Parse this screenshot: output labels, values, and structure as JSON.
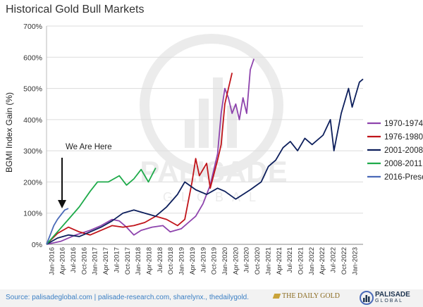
{
  "title": "Historical Gold Bull Markets",
  "watermark": {
    "name": "PALISADE",
    "sub": "GLOBAL"
  },
  "footer": {
    "source": "Source: palisadeglobal.com  | palisade-research.com, sharelynx.,  thedailygold.",
    "thedailygold_logo": "THE DAILY GOLD",
    "palisade_logo_name": "PALISADE",
    "palisade_logo_sub": "GLOBAL"
  },
  "annotation": {
    "text": "We Are Here",
    "points_to": "2016-Present latest value"
  },
  "colors": {
    "1970-1974": "#8e44ad",
    "1976-1980": "#c0141a",
    "2001-2008": "#0d1f5c",
    "2008-2011": "#1eaa4a",
    "2016-Present": "#4a6ab8"
  },
  "chart_data": {
    "type": "line",
    "title": "Historical Gold Bull Markets",
    "xlabel": "",
    "ylabel": "BGMI Index Gain (%)",
    "ylim": [
      0,
      700
    ],
    "yticks": [
      0,
      100,
      200,
      300,
      400,
      500,
      600,
      700
    ],
    "ytick_labels": [
      "0%",
      "100%",
      "200%",
      "300%",
      "400%",
      "500%",
      "600%",
      "700%"
    ],
    "x_range": [
      "2016-01",
      "2023-04"
    ],
    "xtick_labels": [
      "Jan-2016",
      "Apr-2016",
      "Jul-2016",
      "Oct-2016",
      "Jan-2017",
      "Apr-2017",
      "Jul-2017",
      "Oct-2017",
      "Jan-2018",
      "Apr-2018",
      "Jul-2018",
      "Oct-2018",
      "Jan-2019",
      "Apr-2019",
      "Jul-2019",
      "Oct-2019",
      "Jan-2020",
      "Apr-2020",
      "Jul-2020",
      "Oct-2020",
      "Jan-2021",
      "Apr-2021",
      "Jul-2021",
      "Oct-2021",
      "Jan-2022",
      "Apr-2022",
      "Jul-2022",
      "Oct-2022",
      "Jan-2023"
    ],
    "grid": true,
    "legend": "right",
    "series": [
      {
        "name": "1970-1974",
        "points": [
          [
            "2016-01",
            0
          ],
          [
            "2016-05",
            10
          ],
          [
            "2016-09",
            30
          ],
          [
            "2017-01",
            45
          ],
          [
            "2017-04",
            60
          ],
          [
            "2017-07",
            80
          ],
          [
            "2017-09",
            75
          ],
          [
            "2017-11",
            55
          ],
          [
            "2018-01",
            30
          ],
          [
            "2018-03",
            45
          ],
          [
            "2018-06",
            55
          ],
          [
            "2018-09",
            60
          ],
          [
            "2018-11",
            40
          ],
          [
            "2019-02",
            50
          ],
          [
            "2019-04",
            70
          ],
          [
            "2019-06",
            90
          ],
          [
            "2019-08",
            130
          ],
          [
            "2019-10",
            190
          ],
          [
            "2019-12",
            290
          ],
          [
            "2020-01",
            420
          ],
          [
            "2020-02",
            500
          ],
          [
            "2020-03",
            470
          ],
          [
            "2020-04",
            420
          ],
          [
            "2020-05",
            450
          ],
          [
            "2020-06",
            400
          ],
          [
            "2020-07",
            470
          ],
          [
            "2020-08",
            420
          ],
          [
            "2020-09",
            560
          ],
          [
            "2020-10",
            595
          ]
        ]
      },
      {
        "name": "1976-1980",
        "points": [
          [
            "2016-01",
            0
          ],
          [
            "2016-04",
            35
          ],
          [
            "2016-07",
            55
          ],
          [
            "2016-10",
            40
          ],
          [
            "2017-01",
            30
          ],
          [
            "2017-04",
            45
          ],
          [
            "2017-07",
            60
          ],
          [
            "2017-10",
            55
          ],
          [
            "2018-01",
            60
          ],
          [
            "2018-04",
            70
          ],
          [
            "2018-07",
            90
          ],
          [
            "2018-10",
            80
          ],
          [
            "2019-01",
            60
          ],
          [
            "2019-03",
            80
          ],
          [
            "2019-05",
            200
          ],
          [
            "2019-06",
            275
          ],
          [
            "2019-07",
            220
          ],
          [
            "2019-09",
            260
          ],
          [
            "2019-10",
            180
          ],
          [
            "2019-12",
            270
          ],
          [
            "2020-01",
            320
          ],
          [
            "2020-02",
            450
          ],
          [
            "2020-03",
            500
          ],
          [
            "2020-04",
            550
          ]
        ]
      },
      {
        "name": "2001-2008",
        "points": [
          [
            "2016-01",
            0
          ],
          [
            "2016-04",
            20
          ],
          [
            "2016-07",
            30
          ],
          [
            "2016-10",
            25
          ],
          [
            "2017-01",
            40
          ],
          [
            "2017-04",
            55
          ],
          [
            "2017-07",
            75
          ],
          [
            "2017-10",
            100
          ],
          [
            "2018-01",
            110
          ],
          [
            "2018-04",
            100
          ],
          [
            "2018-07",
            90
          ],
          [
            "2018-10",
            120
          ],
          [
            "2019-01",
            160
          ],
          [
            "2019-03",
            200
          ],
          [
            "2019-06",
            175
          ],
          [
            "2019-09",
            160
          ],
          [
            "2019-12",
            180
          ],
          [
            "2020-02",
            170
          ],
          [
            "2020-05",
            145
          ],
          [
            "2020-07",
            160
          ],
          [
            "2020-09",
            175
          ],
          [
            "2020-12",
            200
          ],
          [
            "2021-02",
            250
          ],
          [
            "2021-04",
            270
          ],
          [
            "2021-06",
            310
          ],
          [
            "2021-08",
            330
          ],
          [
            "2021-10",
            300
          ],
          [
            "2021-12",
            340
          ],
          [
            "2022-02",
            320
          ],
          [
            "2022-05",
            350
          ],
          [
            "2022-07",
            400
          ],
          [
            "2022-08",
            300
          ],
          [
            "2022-10",
            420
          ],
          [
            "2022-12",
            500
          ],
          [
            "2023-01",
            440
          ],
          [
            "2023-03",
            520
          ],
          [
            "2023-04",
            530
          ]
        ]
      },
      {
        "name": "2008-2011",
        "points": [
          [
            "2016-01",
            0
          ],
          [
            "2016-04",
            40
          ],
          [
            "2016-07",
            80
          ],
          [
            "2016-10",
            120
          ],
          [
            "2017-01",
            170
          ],
          [
            "2017-03",
            200
          ],
          [
            "2017-06",
            200
          ],
          [
            "2017-09",
            220
          ],
          [
            "2017-11",
            190
          ],
          [
            "2018-01",
            210
          ],
          [
            "2018-03",
            240
          ],
          [
            "2018-05",
            200
          ],
          [
            "2018-07",
            245
          ]
        ]
      },
      {
        "name": "2016-Present",
        "points": [
          [
            "2016-01",
            0
          ],
          [
            "2016-02",
            30
          ],
          [
            "2016-03",
            60
          ],
          [
            "2016-04",
            80
          ],
          [
            "2016-05",
            95
          ],
          [
            "2016-06",
            110
          ],
          [
            "2016-07",
            115
          ]
        ]
      }
    ]
  }
}
